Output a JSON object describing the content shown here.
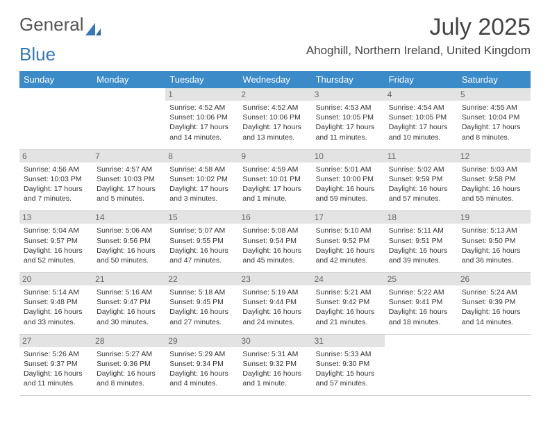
{
  "logo": {
    "text1": "General",
    "text2": "Blue"
  },
  "title": "July 2025",
  "location": "Ahoghill, Northern Ireland, United Kingdom",
  "colors": {
    "header_bg": "#3b8bc9",
    "header_fg": "#ffffff",
    "daynum_bg": "#e3e3e3",
    "daynum_fg": "#666666",
    "text": "#333333",
    "border": "#d0d0d0",
    "logo_blue": "#3478bc",
    "logo_gray": "#555555"
  },
  "day_headers": [
    "Sunday",
    "Monday",
    "Tuesday",
    "Wednesday",
    "Thursday",
    "Friday",
    "Saturday"
  ],
  "weeks": [
    [
      {
        "n": "",
        "sr": "",
        "ss": "",
        "dl": ""
      },
      {
        "n": "",
        "sr": "",
        "ss": "",
        "dl": ""
      },
      {
        "n": "1",
        "sr": "Sunrise: 4:52 AM",
        "ss": "Sunset: 10:06 PM",
        "dl": "Daylight: 17 hours and 14 minutes."
      },
      {
        "n": "2",
        "sr": "Sunrise: 4:52 AM",
        "ss": "Sunset: 10:06 PM",
        "dl": "Daylight: 17 hours and 13 minutes."
      },
      {
        "n": "3",
        "sr": "Sunrise: 4:53 AM",
        "ss": "Sunset: 10:05 PM",
        "dl": "Daylight: 17 hours and 11 minutes."
      },
      {
        "n": "4",
        "sr": "Sunrise: 4:54 AM",
        "ss": "Sunset: 10:05 PM",
        "dl": "Daylight: 17 hours and 10 minutes."
      },
      {
        "n": "5",
        "sr": "Sunrise: 4:55 AM",
        "ss": "Sunset: 10:04 PM",
        "dl": "Daylight: 17 hours and 8 minutes."
      }
    ],
    [
      {
        "n": "6",
        "sr": "Sunrise: 4:56 AM",
        "ss": "Sunset: 10:03 PM",
        "dl": "Daylight: 17 hours and 7 minutes."
      },
      {
        "n": "7",
        "sr": "Sunrise: 4:57 AM",
        "ss": "Sunset: 10:03 PM",
        "dl": "Daylight: 17 hours and 5 minutes."
      },
      {
        "n": "8",
        "sr": "Sunrise: 4:58 AM",
        "ss": "Sunset: 10:02 PM",
        "dl": "Daylight: 17 hours and 3 minutes."
      },
      {
        "n": "9",
        "sr": "Sunrise: 4:59 AM",
        "ss": "Sunset: 10:01 PM",
        "dl": "Daylight: 17 hours and 1 minute."
      },
      {
        "n": "10",
        "sr": "Sunrise: 5:01 AM",
        "ss": "Sunset: 10:00 PM",
        "dl": "Daylight: 16 hours and 59 minutes."
      },
      {
        "n": "11",
        "sr": "Sunrise: 5:02 AM",
        "ss": "Sunset: 9:59 PM",
        "dl": "Daylight: 16 hours and 57 minutes."
      },
      {
        "n": "12",
        "sr": "Sunrise: 5:03 AM",
        "ss": "Sunset: 9:58 PM",
        "dl": "Daylight: 16 hours and 55 minutes."
      }
    ],
    [
      {
        "n": "13",
        "sr": "Sunrise: 5:04 AM",
        "ss": "Sunset: 9:57 PM",
        "dl": "Daylight: 16 hours and 52 minutes."
      },
      {
        "n": "14",
        "sr": "Sunrise: 5:06 AM",
        "ss": "Sunset: 9:56 PM",
        "dl": "Daylight: 16 hours and 50 minutes."
      },
      {
        "n": "15",
        "sr": "Sunrise: 5:07 AM",
        "ss": "Sunset: 9:55 PM",
        "dl": "Daylight: 16 hours and 47 minutes."
      },
      {
        "n": "16",
        "sr": "Sunrise: 5:08 AM",
        "ss": "Sunset: 9:54 PM",
        "dl": "Daylight: 16 hours and 45 minutes."
      },
      {
        "n": "17",
        "sr": "Sunrise: 5:10 AM",
        "ss": "Sunset: 9:52 PM",
        "dl": "Daylight: 16 hours and 42 minutes."
      },
      {
        "n": "18",
        "sr": "Sunrise: 5:11 AM",
        "ss": "Sunset: 9:51 PM",
        "dl": "Daylight: 16 hours and 39 minutes."
      },
      {
        "n": "19",
        "sr": "Sunrise: 5:13 AM",
        "ss": "Sunset: 9:50 PM",
        "dl": "Daylight: 16 hours and 36 minutes."
      }
    ],
    [
      {
        "n": "20",
        "sr": "Sunrise: 5:14 AM",
        "ss": "Sunset: 9:48 PM",
        "dl": "Daylight: 16 hours and 33 minutes."
      },
      {
        "n": "21",
        "sr": "Sunrise: 5:16 AM",
        "ss": "Sunset: 9:47 PM",
        "dl": "Daylight: 16 hours and 30 minutes."
      },
      {
        "n": "22",
        "sr": "Sunrise: 5:18 AM",
        "ss": "Sunset: 9:45 PM",
        "dl": "Daylight: 16 hours and 27 minutes."
      },
      {
        "n": "23",
        "sr": "Sunrise: 5:19 AM",
        "ss": "Sunset: 9:44 PM",
        "dl": "Daylight: 16 hours and 24 minutes."
      },
      {
        "n": "24",
        "sr": "Sunrise: 5:21 AM",
        "ss": "Sunset: 9:42 PM",
        "dl": "Daylight: 16 hours and 21 minutes."
      },
      {
        "n": "25",
        "sr": "Sunrise: 5:22 AM",
        "ss": "Sunset: 9:41 PM",
        "dl": "Daylight: 16 hours and 18 minutes."
      },
      {
        "n": "26",
        "sr": "Sunrise: 5:24 AM",
        "ss": "Sunset: 9:39 PM",
        "dl": "Daylight: 16 hours and 14 minutes."
      }
    ],
    [
      {
        "n": "27",
        "sr": "Sunrise: 5:26 AM",
        "ss": "Sunset: 9:37 PM",
        "dl": "Daylight: 16 hours and 11 minutes."
      },
      {
        "n": "28",
        "sr": "Sunrise: 5:27 AM",
        "ss": "Sunset: 9:36 PM",
        "dl": "Daylight: 16 hours and 8 minutes."
      },
      {
        "n": "29",
        "sr": "Sunrise: 5:29 AM",
        "ss": "Sunset: 9:34 PM",
        "dl": "Daylight: 16 hours and 4 minutes."
      },
      {
        "n": "30",
        "sr": "Sunrise: 5:31 AM",
        "ss": "Sunset: 9:32 PM",
        "dl": "Daylight: 16 hours and 1 minute."
      },
      {
        "n": "31",
        "sr": "Sunrise: 5:33 AM",
        "ss": "Sunset: 9:30 PM",
        "dl": "Daylight: 15 hours and 57 minutes."
      },
      {
        "n": "",
        "sr": "",
        "ss": "",
        "dl": ""
      },
      {
        "n": "",
        "sr": "",
        "ss": "",
        "dl": ""
      }
    ]
  ]
}
